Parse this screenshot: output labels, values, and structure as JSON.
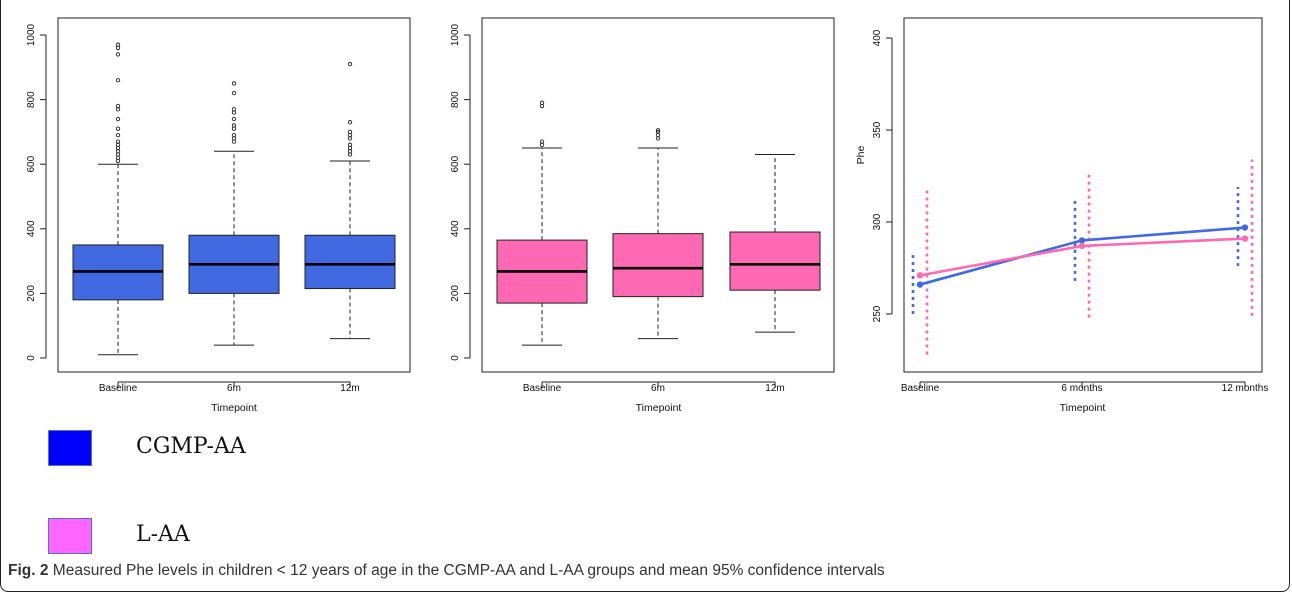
{
  "chart_data": [
    {
      "type": "box",
      "group": "CGMP-AA",
      "color": "#4169E1",
      "xlabel": "Timepoint",
      "ylabel": "",
      "ylim": [
        0,
        1000
      ],
      "yticks": [
        0,
        200,
        400,
        600,
        800,
        1000
      ],
      "categories": [
        "Baseline",
        "6m",
        "12m"
      ],
      "boxes": [
        {
          "whisker_low": 10,
          "q1": 180,
          "median": 268,
          "q3": 350,
          "whisker_high": 600,
          "outliers": [
            610,
            620,
            630,
            640,
            650,
            660,
            670,
            690,
            710,
            740,
            770,
            780,
            860,
            940,
            960,
            970
          ]
        },
        {
          "whisker_low": 40,
          "q1": 200,
          "median": 290,
          "q3": 380,
          "whisker_high": 640,
          "outliers": [
            670,
            680,
            690,
            710,
            720,
            740,
            760,
            770,
            820,
            850
          ]
        },
        {
          "whisker_low": 60,
          "q1": 215,
          "median": 290,
          "q3": 380,
          "whisker_high": 610,
          "outliers": [
            630,
            640,
            650,
            660,
            680,
            690,
            700,
            730,
            910
          ]
        }
      ]
    },
    {
      "type": "box",
      "group": "L-AA",
      "color": "#FF69B4",
      "xlabel": "Timepoint",
      "ylabel": "",
      "ylim": [
        0,
        1000
      ],
      "yticks": [
        0,
        200,
        400,
        600,
        800,
        1000
      ],
      "categories": [
        "Baseline",
        "6m",
        "12m"
      ],
      "boxes": [
        {
          "whisker_low": 40,
          "q1": 170,
          "median": 268,
          "q3": 365,
          "whisker_high": 650,
          "outliers": [
            660,
            670,
            780,
            790
          ]
        },
        {
          "whisker_low": 60,
          "q1": 190,
          "median": 278,
          "q3": 385,
          "whisker_high": 650,
          "outliers": [
            680,
            690,
            700,
            705
          ]
        },
        {
          "whisker_low": 80,
          "q1": 210,
          "median": 290,
          "q3": 390,
          "whisker_high": 630,
          "outliers": []
        }
      ]
    },
    {
      "type": "line",
      "xlabel": "Timepoint",
      "ylabel": "Phe",
      "ylim": [
        220,
        400
      ],
      "yticks": [
        250,
        300,
        350,
        400
      ],
      "categories": [
        "Baseline",
        "6 months",
        "12 months"
      ],
      "series": [
        {
          "name": "CGMP-AA",
          "color": "#4169E1",
          "values": [
            266,
            290,
            297
          ],
          "ci_low": [
            250,
            268,
            276
          ],
          "ci_high": [
            282,
            312,
            319
          ]
        },
        {
          "name": "L-AA",
          "color": "#FF69B4",
          "values": [
            271,
            287,
            291
          ],
          "ci_low": [
            228,
            248,
            249
          ],
          "ci_high": [
            318,
            328,
            334
          ]
        }
      ]
    }
  ],
  "legend": {
    "items": [
      {
        "label": "CGMP-AA",
        "color": "#0000FF"
      },
      {
        "label": "L-AA",
        "color": "#FF66FF"
      }
    ]
  },
  "caption": {
    "label": "Fig. 2",
    "text": " Measured Phe levels in children < 12 years of age in the CGMP-AA and L-AA groups and mean 95% confidence intervals"
  }
}
